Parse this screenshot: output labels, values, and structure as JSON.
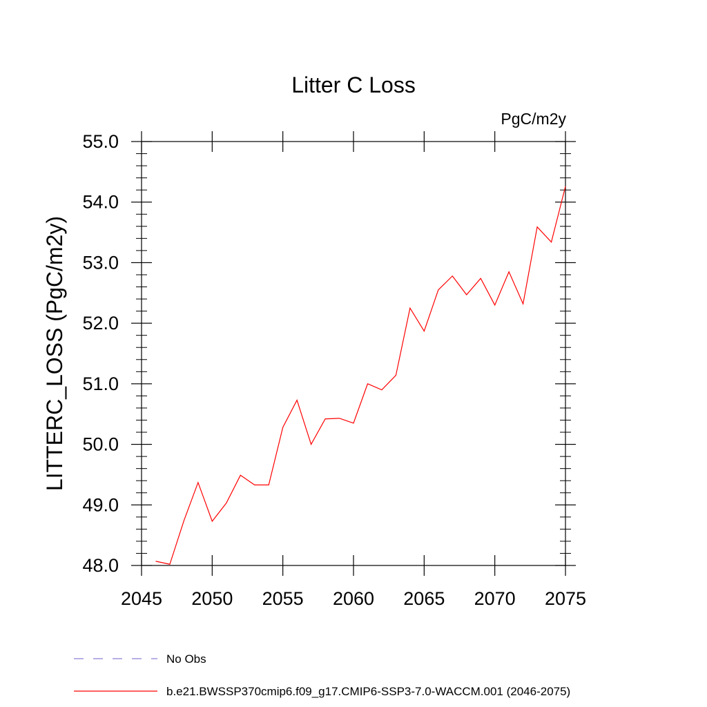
{
  "chart_data": {
    "type": "line",
    "title": "Litter C Loss",
    "units_label": "PgC/m2y",
    "ylabel": "LITTERC_LOSS  (PgC/m2y)",
    "xlabel": "",
    "xlim": [
      2045,
      2075
    ],
    "ylim": [
      48.0,
      55.0
    ],
    "x_ticks": [
      "2045",
      "2050",
      "2055",
      "2060",
      "2065",
      "2070",
      "2075"
    ],
    "y_ticks": [
      "48.0",
      "49.0",
      "50.0",
      "51.0",
      "52.0",
      "53.0",
      "54.0",
      "55.0"
    ],
    "series": [
      {
        "name": "b.e21.BWSSP370cmip6.f09_g17.CMIP6-SSP3-7.0-WACCM.001 (2046-2075)",
        "color": "#ff0000",
        "x": [
          2046,
          2047,
          2048,
          2049,
          2050,
          2051,
          2052,
          2053,
          2054,
          2055,
          2056,
          2057,
          2058,
          2059,
          2060,
          2061,
          2062,
          2063,
          2064,
          2065,
          2066,
          2067,
          2068,
          2069,
          2070,
          2071,
          2072,
          2073,
          2074,
          2075
        ],
        "y": [
          48.07,
          48.02,
          48.74,
          49.37,
          48.73,
          49.03,
          49.49,
          49.33,
          49.33,
          50.28,
          50.73,
          50.0,
          50.42,
          50.43,
          50.35,
          51.0,
          50.9,
          51.14,
          52.25,
          51.87,
          52.55,
          52.78,
          52.47,
          52.74,
          52.3,
          52.85,
          52.32,
          53.59,
          53.34,
          54.26
        ]
      }
    ],
    "legend": [
      {
        "label": "No Obs",
        "style": "dashed",
        "color": "#8a7fd6"
      },
      {
        "label": "b.e21.BWSSP370cmip6.f09_g17.CMIP6-SSP3-7.0-WACCM.001 (2046-2075)",
        "style": "solid",
        "color": "#ff0000"
      }
    ],
    "grid": false
  }
}
